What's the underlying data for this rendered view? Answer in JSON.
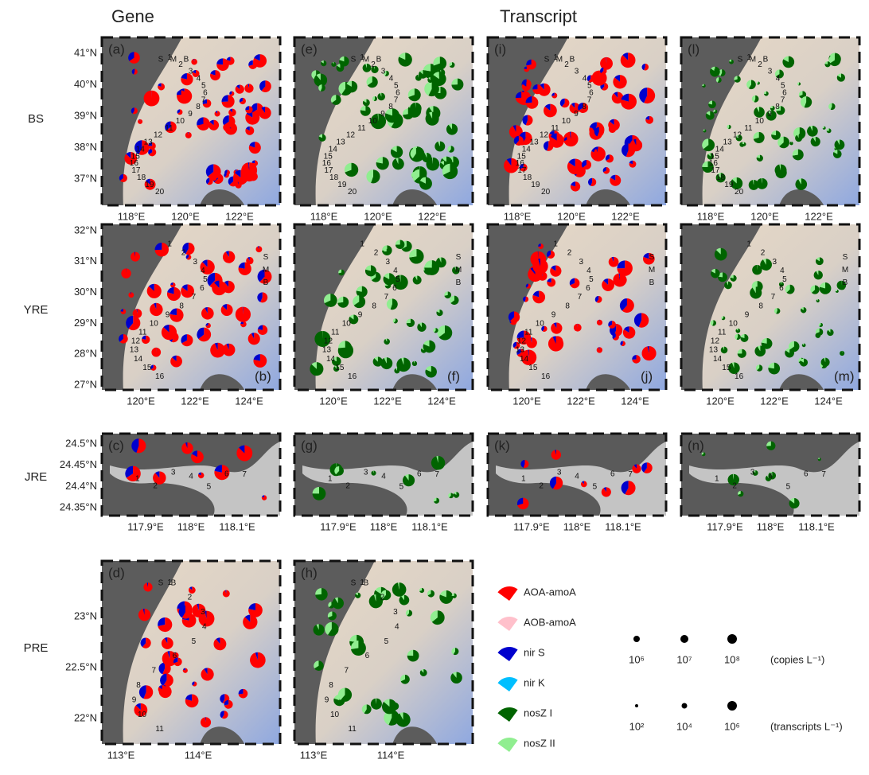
{
  "headers": {
    "gene": "Gene",
    "transcript": "Transcript"
  },
  "rows": [
    {
      "label": "BS",
      "panels": [
        "(a)",
        "(e)",
        "(i)",
        "(l)"
      ],
      "yticks": [
        "41°N",
        "40°N",
        "39°N",
        "38°N",
        "37°N"
      ],
      "xticks": [
        "118°E",
        "120°E",
        "122°E"
      ],
      "depth_labels": [
        "S",
        "M",
        "B"
      ],
      "stations": [
        "1",
        "2",
        "3",
        "4",
        "5",
        "6",
        "7",
        "8",
        "9",
        "10",
        "11",
        "12",
        "13",
        "14",
        "15",
        "16",
        "17",
        "18",
        "19",
        "20"
      ]
    },
    {
      "label": "YRE",
      "panels": [
        "(b)",
        "(f)",
        "(j)",
        "(m)"
      ],
      "yticks": [
        "32°N",
        "31°N",
        "30°N",
        "29°N",
        "28°N",
        "27°N"
      ],
      "xticks": [
        "120°E",
        "122°E",
        "124°E"
      ],
      "depth_labels": [
        "S",
        "M",
        "B"
      ],
      "stations": [
        "1",
        "2",
        "3",
        "4",
        "5",
        "6",
        "7",
        "8",
        "9",
        "10",
        "11",
        "12",
        "13",
        "14",
        "15",
        "16"
      ]
    },
    {
      "label": "JRE",
      "panels": [
        "(c)",
        "(g)",
        "(k)",
        "(n)"
      ],
      "yticks": [
        "24.5°N",
        "24.45°N",
        "24.4°N",
        "24.35°N"
      ],
      "xticks": [
        "117.9°E",
        "118°E",
        "118.1°E"
      ],
      "stations": [
        "1",
        "2",
        "3",
        "4",
        "5",
        "6",
        "7"
      ]
    },
    {
      "label": "PRE",
      "panels": [
        "(d)",
        "(h)"
      ],
      "yticks": [
        "23°N",
        "22.5°N",
        "22°N"
      ],
      "xticks": [
        "113°E",
        "114°E"
      ],
      "depth_labels": [
        "S",
        "B"
      ],
      "stations": [
        "1",
        "2",
        "3",
        "4",
        "5",
        "6",
        "7",
        "8",
        "9",
        "10",
        "11"
      ]
    }
  ],
  "legend": {
    "items": [
      {
        "name": "AOA-amoA",
        "color": "#ff0000"
      },
      {
        "name": "AOB-amoA",
        "color": "#ffc0cb"
      },
      {
        "name": "nir S",
        "color": "#0000cd"
      },
      {
        "name": "nir K",
        "color": "#00bfff"
      },
      {
        "name": "nosZ I",
        "color": "#006400"
      },
      {
        "name": "nosZ II",
        "color": "#90ee90"
      }
    ],
    "size_gene": {
      "labels": [
        "10⁶",
        "10⁷",
        "10⁸"
      ],
      "unit": "(copies L⁻¹)"
    },
    "size_transcript": {
      "labels": [
        "10²",
        "10⁴",
        "10⁶"
      ],
      "unit": "(transcripts L⁻¹)"
    }
  }
}
